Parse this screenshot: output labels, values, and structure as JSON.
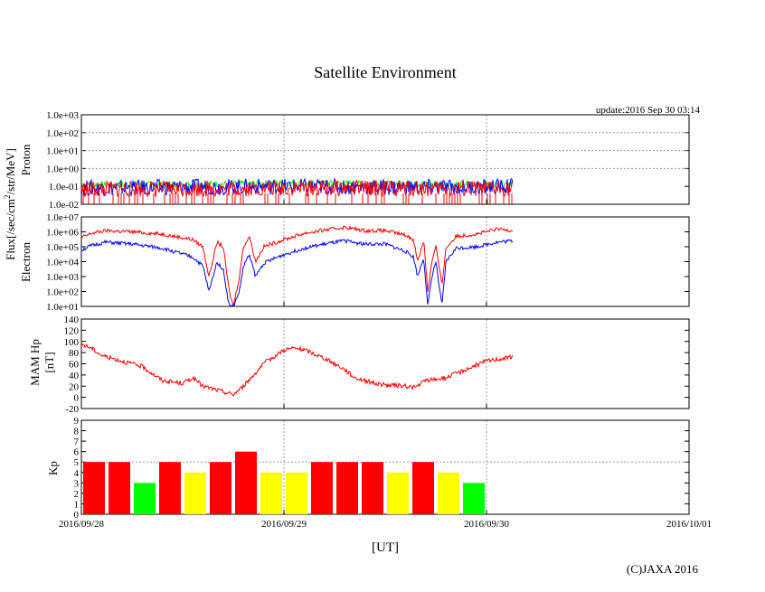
{
  "title": "Satellite Environment",
  "update": "update:2016 Sep 30 03:14",
  "copyright": "(C)JAXA 2016",
  "xlabel": "[UT]",
  "x_ticks": [
    "2016/09/28",
    "2016/09/29",
    "2016/09/30",
    "2016/10/01"
  ],
  "ylabels": {
    "flux_prefix": "Flux[/sec/cm",
    "flux_sup": "2",
    "flux_suffix": "/str/MeV]",
    "proton": "Proton",
    "electron": "Electron",
    "mam1": "MAM Hp",
    "mam2": "[nT]",
    "kp": "Kp"
  },
  "colors": {
    "red": "#ff0000",
    "blue": "#0000ff",
    "green": "#00ff00",
    "yellow": "#ffff00",
    "grid": "#999999"
  },
  "chart_data": [
    {
      "type": "line",
      "name": "Proton flux",
      "yscale": "log",
      "ylim": [
        0.01,
        1000
      ],
      "xlim_days": [
        0,
        3
      ],
      "y_ticks": [
        "1.0e-02",
        "1.0e-01",
        "1.0e+00",
        "1.0e+01",
        "1.0e+02",
        "1.0e+03"
      ],
      "series": [
        {
          "name": "green",
          "color": "#00ff00",
          "x": [
            0,
            0.5,
            1.0,
            1.5,
            2.0,
            2.13
          ],
          "y": [
            0.12,
            0.13,
            0.15,
            0.14,
            0.13,
            0.16
          ]
        },
        {
          "name": "blue",
          "color": "#0000ff",
          "x": [
            0,
            0.5,
            1.0,
            1.5,
            2.0,
            2.13
          ],
          "y": [
            0.08,
            0.09,
            0.1,
            0.09,
            0.09,
            0.1
          ]
        },
        {
          "name": "red",
          "color": "#ff0000",
          "x": [
            0,
            0.5,
            1.0,
            1.5,
            2.0,
            2.13
          ],
          "y": [
            0.07,
            0.07,
            0.08,
            0.08,
            0.07,
            0.08
          ]
        }
      ]
    },
    {
      "type": "line",
      "name": "Electron flux",
      "yscale": "log",
      "ylim": [
        10,
        10000000
      ],
      "xlim_days": [
        0,
        3
      ],
      "y_ticks": [
        "1.0e+01",
        "1.0e+02",
        "1.0e+03",
        "1.0e+04",
        "1.0e+05",
        "1.0e+06",
        "1.0e+07"
      ],
      "series": [
        {
          "name": "red",
          "color": "#ff0000",
          "x": [
            0,
            0.05,
            0.12,
            0.25,
            0.4,
            0.55,
            0.6,
            0.63,
            0.67,
            0.7,
            0.73,
            0.75,
            0.78,
            0.8,
            0.83,
            0.86,
            0.9,
            1.0,
            1.1,
            1.2,
            1.3,
            1.4,
            1.5,
            1.6,
            1.64,
            1.66,
            1.69,
            1.71,
            1.73,
            1.75,
            1.78,
            1.8,
            1.85,
            1.95,
            2.05,
            2.13
          ],
          "y": [
            400000,
            800000,
            1200000,
            1000000,
            700000,
            300000,
            100000,
            1000,
            200000,
            100000,
            100,
            10,
            1000,
            100000,
            500000,
            10000,
            100000,
            300000,
            800000,
            1300000,
            2000000,
            1200000,
            1200000,
            600000,
            300000,
            10000,
            300000,
            100,
            10000,
            100000,
            300,
            80000,
            500000,
            700000,
            1500000,
            1300000
          ]
        },
        {
          "name": "blue",
          "color": "#0000ff",
          "x": [
            0,
            0.05,
            0.12,
            0.25,
            0.4,
            0.55,
            0.6,
            0.63,
            0.67,
            0.7,
            0.73,
            0.75,
            0.78,
            0.8,
            0.83,
            0.86,
            0.9,
            1.0,
            1.1,
            1.2,
            1.3,
            1.4,
            1.5,
            1.6,
            1.64,
            1.66,
            1.69,
            1.71,
            1.73,
            1.75,
            1.78,
            1.8,
            1.85,
            1.95,
            2.05,
            2.13
          ],
          "y": [
            60000,
            120000,
            200000,
            150000,
            80000,
            20000,
            5000,
            100,
            10000,
            3000,
            10,
            10,
            100,
            5000,
            30000,
            1000,
            8000,
            30000,
            80000,
            150000,
            250000,
            150000,
            150000,
            50000,
            20000,
            1000,
            20000,
            10,
            1000,
            10000,
            10,
            10000,
            80000,
            100000,
            200000,
            250000
          ]
        }
      ]
    },
    {
      "type": "line",
      "name": "MAM Hp",
      "ylim": [
        -20,
        140
      ],
      "xlim_days": [
        0,
        3
      ],
      "y_ticks": [
        "-20",
        "0",
        "20",
        "40",
        "60",
        "80",
        "100",
        "120",
        "140"
      ],
      "series": [
        {
          "name": "Hp",
          "color": "#ff0000",
          "x": [
            0,
            0.05,
            0.1,
            0.2,
            0.3,
            0.4,
            0.5,
            0.55,
            0.6,
            0.65,
            0.7,
            0.75,
            0.8,
            0.85,
            0.9,
            1.0,
            1.05,
            1.1,
            1.2,
            1.3,
            1.35,
            1.4,
            1.45,
            1.5,
            1.6,
            1.65,
            1.7,
            1.8,
            1.9,
            2.0,
            2.05,
            2.13
          ],
          "y": [
            95,
            88,
            75,
            65,
            55,
            30,
            25,
            35,
            20,
            15,
            10,
            5,
            20,
            40,
            60,
            85,
            88,
            85,
            70,
            50,
            35,
            30,
            25,
            22,
            20,
            18,
            30,
            35,
            50,
            65,
            68,
            72
          ]
        }
      ]
    },
    {
      "type": "bar",
      "name": "Kp",
      "ylim": [
        0,
        9
      ],
      "xlim_days": [
        0,
        3
      ],
      "y_ticks": [
        "0",
        "1",
        "2",
        "3",
        "4",
        "5",
        "6",
        "7",
        "8",
        "9"
      ],
      "interval_hours": 3,
      "values": [
        5,
        5,
        3,
        5,
        4,
        5,
        6,
        4,
        4,
        5,
        5,
        5,
        4,
        5,
        4,
        3
      ],
      "bar_colors": [
        "#ff0000",
        "#ff0000",
        "#00ff00",
        "#ff0000",
        "#ffff00",
        "#ff0000",
        "#ff0000",
        "#ffff00",
        "#ffff00",
        "#ff0000",
        "#ff0000",
        "#ff0000",
        "#ffff00",
        "#ff0000",
        "#ffff00",
        "#00ff00"
      ]
    }
  ]
}
